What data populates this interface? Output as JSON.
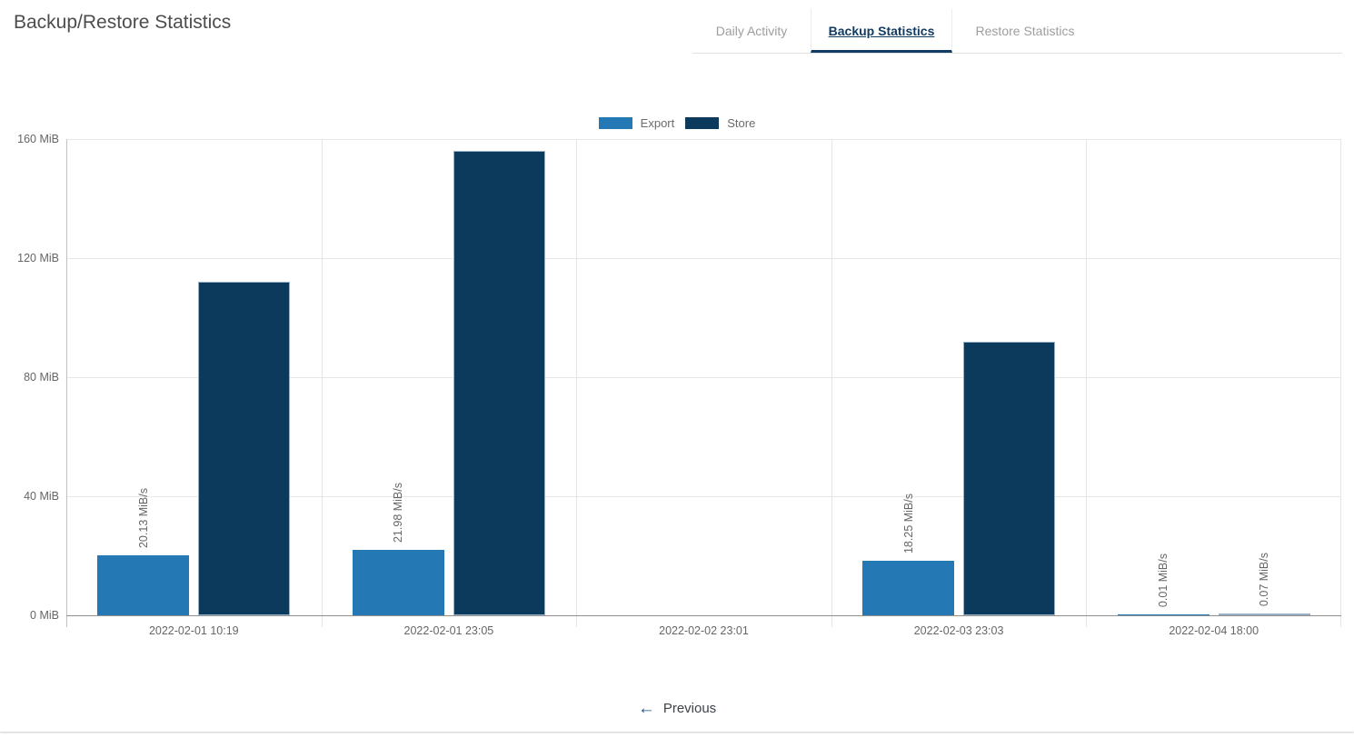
{
  "header": {
    "title": "Backup/Restore Statistics"
  },
  "tabs": [
    {
      "label": "Daily Activity",
      "active": false
    },
    {
      "label": "Backup Statistics",
      "active": true
    },
    {
      "label": "Restore Statistics",
      "active": false
    }
  ],
  "pager": {
    "previous_label": "Previous",
    "arrow_icon": "left-arrow"
  },
  "colors": {
    "export_series": "#2478b4",
    "store_series": "#0b3a5d",
    "active_tab": "#123c63",
    "inactive_tab": "#9e9e9e",
    "gridline": "#e7e7e7",
    "axis": "#8f8f8f",
    "muted_text": "#666666"
  },
  "chart_data": {
    "type": "bar",
    "title": "",
    "xlabel": "",
    "ylabel": "",
    "unit": "MiB",
    "categories": [
      "2022-02-01 10:19",
      "2022-02-01 23:05",
      "2022-02-02 23:01",
      "2022-02-03 23:03",
      "2022-02-04 18:00"
    ],
    "series": [
      {
        "name": "Export",
        "color": "#2478b4",
        "values": [
          20.13,
          21.98,
          null,
          18.25,
          0.01
        ],
        "bar_labels": [
          "20.13 MiB/s",
          "21.98 MiB/s",
          null,
          "18.25 MiB/s",
          "0.01 MiB/s"
        ]
      },
      {
        "name": "Store",
        "color": "#0b3a5d",
        "values": [
          112,
          156,
          null,
          92,
          0.07
        ],
        "bar_labels": [
          null,
          null,
          null,
          null,
          "0.07 MiB/s"
        ]
      }
    ],
    "ylim": [
      0,
      160
    ],
    "yticks": [
      "0 MiB",
      "40 MiB",
      "80 MiB",
      "120 MiB",
      "160 MiB"
    ],
    "grid": true,
    "legend_position": "top-center"
  }
}
